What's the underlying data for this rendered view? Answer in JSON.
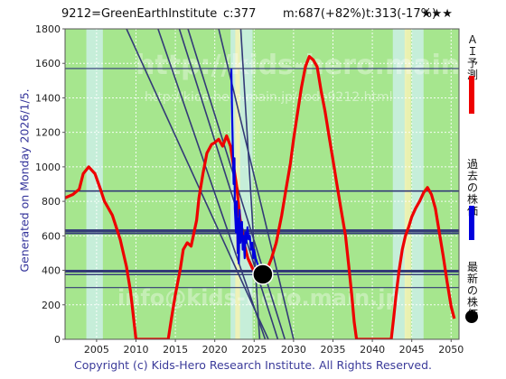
{
  "header": {
    "ticker": "9212=GreenEarthInstitute",
    "current": "c:377",
    "max_change": "m:687(+82%)",
    "min_change": "t:313(-17%)",
    "stars": "★★★"
  },
  "side_label": "Generated on Monday 2026/1/5.",
  "footer": "Copyright (c) Kids-Hero Research Institute. All Rights Reserved.",
  "watermark": {
    "url": "http://kids-hero.main.jp/",
    "path": "http://kids-hero.main.jp/code9212.html",
    "email": "info@kids-hero.main.jp"
  },
  "legend": {
    "ai_forecast": {
      "label": "ＡＩ予測",
      "color": "#ee0000"
    },
    "past_price": {
      "label": "過去の株価",
      "color": "#0000dd"
    },
    "latest_price": {
      "label": "最新の株価",
      "color": "#000000"
    }
  },
  "colors": {
    "green_fill": "#a6e68e",
    "cyan_band": "#cbeee6",
    "yellow_band": "#f2f2b4",
    "hline": "#333a77",
    "trend": "#333a77",
    "thin_green": "#22aa22"
  },
  "chart_data": {
    "type": "line",
    "xlim": [
      2001,
      2051
    ],
    "ylim": [
      0,
      1800
    ],
    "x_ticks": [
      2005,
      2010,
      2015,
      2020,
      2025,
      2030,
      2035,
      2040,
      2045,
      2050
    ],
    "y_ticks": [
      0,
      200,
      400,
      600,
      800,
      1000,
      1200,
      1400,
      1600,
      1800
    ],
    "grid": true,
    "legend_position": "right",
    "series": [
      {
        "name": "ＡＩ予測",
        "color": "#ee0000",
        "points": [
          [
            2001,
            820
          ],
          [
            2002,
            840
          ],
          [
            2002.8,
            870
          ],
          [
            2003.3,
            960
          ],
          [
            2004,
            1000
          ],
          [
            2004.8,
            960
          ],
          [
            2005.5,
            870
          ],
          [
            2006,
            800
          ],
          [
            2007,
            720
          ],
          [
            2008,
            580
          ],
          [
            2008.8,
            420
          ],
          [
            2009.3,
            280
          ],
          [
            2009.7,
            120
          ],
          [
            2010,
            0
          ],
          [
            2014.1,
            0
          ],
          [
            2014.5,
            120
          ],
          [
            2015,
            260
          ],
          [
            2015.6,
            400
          ],
          [
            2016,
            520
          ],
          [
            2016.5,
            560
          ],
          [
            2017,
            540
          ],
          [
            2017.7,
            690
          ],
          [
            2018,
            820
          ],
          [
            2018.5,
            960
          ],
          [
            2019,
            1080
          ],
          [
            2019.6,
            1130
          ],
          [
            2020,
            1140
          ],
          [
            2020.5,
            1160
          ],
          [
            2021,
            1120
          ],
          [
            2021.5,
            1180
          ],
          [
            2022,
            1120
          ],
          [
            2022.4,
            1000
          ],
          [
            2022.8,
            880
          ],
          [
            2023.2,
            700
          ],
          [
            2023.7,
            560
          ],
          [
            2024.2,
            470
          ],
          [
            2024.8,
            410
          ],
          [
            2025.3,
            390
          ],
          [
            2026,
            380
          ],
          [
            2026.6,
            400
          ],
          [
            2027.2,
            470
          ],
          [
            2027.8,
            560
          ],
          [
            2028.5,
            720
          ],
          [
            2029,
            860
          ],
          [
            2029.6,
            1020
          ],
          [
            2030,
            1160
          ],
          [
            2030.5,
            1310
          ],
          [
            2031,
            1460
          ],
          [
            2031.5,
            1580
          ],
          [
            2032,
            1640
          ],
          [
            2032.5,
            1620
          ],
          [
            2033,
            1580
          ],
          [
            2033.5,
            1440
          ],
          [
            2034,
            1320
          ],
          [
            2034.5,
            1180
          ],
          [
            2035,
            1040
          ],
          [
            2035.5,
            900
          ],
          [
            2036,
            760
          ],
          [
            2036.6,
            600
          ],
          [
            2037,
            430
          ],
          [
            2037.4,
            250
          ],
          [
            2037.7,
            100
          ],
          [
            2038,
            0
          ],
          [
            2042.4,
            0
          ],
          [
            2042.7,
            120
          ],
          [
            2043,
            250
          ],
          [
            2043.4,
            400
          ],
          [
            2043.8,
            520
          ],
          [
            2044.2,
            600
          ],
          [
            2044.6,
            650
          ],
          [
            2045,
            710
          ],
          [
            2045.5,
            760
          ],
          [
            2046,
            800
          ],
          [
            2046.5,
            850
          ],
          [
            2047,
            880
          ],
          [
            2047.5,
            840
          ],
          [
            2048,
            760
          ],
          [
            2048.5,
            620
          ],
          [
            2049,
            480
          ],
          [
            2049.5,
            330
          ],
          [
            2050,
            190
          ],
          [
            2050.4,
            120
          ]
        ]
      },
      {
        "name": "過去の株価",
        "color": "#0000dd",
        "points": [
          [
            2022.1,
            1570
          ],
          [
            2022.2,
            1300
          ],
          [
            2022.3,
            1100
          ],
          [
            2022.4,
            900
          ],
          [
            2022.5,
            1050
          ],
          [
            2022.55,
            760
          ],
          [
            2022.7,
            620
          ],
          [
            2022.8,
            800
          ],
          [
            2022.9,
            500
          ],
          [
            2023.0,
            700
          ],
          [
            2023.05,
            440
          ],
          [
            2023.15,
            750
          ],
          [
            2023.25,
            560
          ],
          [
            2023.35,
            620
          ],
          [
            2023.45,
            680
          ],
          [
            2023.55,
            520
          ],
          [
            2023.65,
            600
          ],
          [
            2023.8,
            470
          ],
          [
            2023.9,
            620
          ],
          [
            2024.0,
            560
          ],
          [
            2024.15,
            650
          ],
          [
            2024.3,
            580
          ],
          [
            2024.45,
            600
          ],
          [
            2024.6,
            520
          ],
          [
            2024.75,
            560
          ],
          [
            2024.9,
            470
          ],
          [
            2025.0,
            520
          ],
          [
            2025.2,
            470
          ],
          [
            2025.4,
            440
          ],
          [
            2025.6,
            420
          ],
          [
            2025.8,
            400
          ],
          [
            2026.0,
            377
          ]
        ]
      }
    ],
    "latest": {
      "x": 2026.1,
      "y": 377
    },
    "hlines": [
      {
        "y": 1570,
        "weight": 1.2
      },
      {
        "y": 860,
        "weight": 1.6
      },
      {
        "y": 630,
        "weight": 3
      },
      {
        "y": 615,
        "weight": 2
      },
      {
        "y": 395,
        "weight": 3
      },
      {
        "y": 375,
        "weight": 1.4
      },
      {
        "y": 300,
        "weight": 1.2
      }
    ],
    "trendlines": [
      {
        "x1": 2015.5,
        "y1": 1800,
        "x2": 2028.0,
        "y2": 0
      },
      {
        "x1": 2016.6,
        "y1": 1800,
        "x2": 2028.9,
        "y2": 0
      },
      {
        "x1": 2012.8,
        "y1": 1800,
        "x2": 2026.4,
        "y2": 0
      },
      {
        "x1": 2008.8,
        "y1": 1800,
        "x2": 2026.8,
        "y2": 0
      },
      {
        "x1": 2020.5,
        "y1": 1800,
        "x2": 2030.0,
        "y2": 0
      },
      {
        "x1": 2023.3,
        "y1": 1800,
        "x2": 2025.7,
        "y2": 0
      }
    ],
    "bands_cyan": [
      [
        2003.7,
        2005.8
      ],
      [
        2022.0,
        2024.8
      ],
      [
        2042.6,
        2044.3
      ],
      [
        2045.0,
        2046.5
      ]
    ],
    "bands_yellow": [
      [
        2022.6,
        2023.2
      ],
      [
        2044.1,
        2044.9
      ]
    ]
  }
}
